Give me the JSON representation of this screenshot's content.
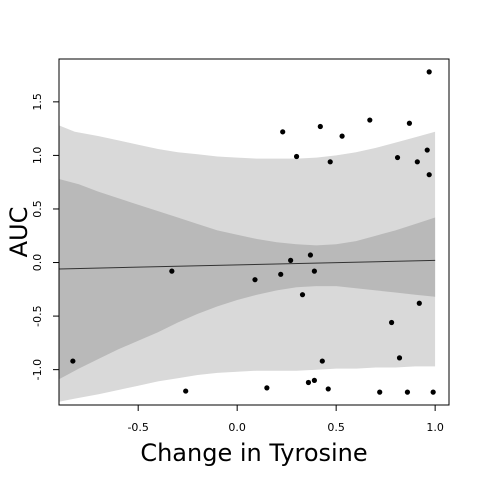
{
  "chart_data": {
    "type": "scatter",
    "title": "",
    "xlabel": "Change in Tyrosine",
    "ylabel": "AUC",
    "xlim": [
      -0.9,
      1.07
    ],
    "ylim": [
      -1.33,
      1.9
    ],
    "x_ticks": [
      -0.5,
      0.0,
      0.5,
      1.0
    ],
    "x_tick_labels": [
      "-0.5",
      "0.0",
      "0.5",
      "1.0"
    ],
    "y_ticks": [
      -1.0,
      -0.5,
      0.0,
      0.5,
      1.0,
      1.5
    ],
    "y_tick_labels": [
      "-1.0",
      "-0.5",
      "0.0",
      "0.5",
      "1.0",
      "1.5"
    ],
    "grid": false,
    "colors": {
      "points": "#000000",
      "outer_band": "#d9d9d9",
      "inner_band": "#b9b9b9",
      "fit_line": "#333333"
    },
    "fit_line": {
      "x": [
        -0.9,
        1.0
      ],
      "y": [
        -0.06,
        0.02
      ]
    },
    "outer_band": {
      "x": [
        -0.9,
        -0.82,
        -0.7,
        -0.6,
        -0.5,
        -0.4,
        -0.3,
        -0.2,
        -0.1,
        0.0,
        0.1,
        0.2,
        0.3,
        0.4,
        0.5,
        0.6,
        0.7,
        0.8,
        0.9,
        1.0
      ],
      "upper": [
        1.28,
        1.22,
        1.18,
        1.14,
        1.1,
        1.06,
        1.03,
        1.01,
        0.99,
        0.98,
        0.97,
        0.97,
        0.97,
        0.98,
        1.0,
        1.03,
        1.07,
        1.12,
        1.17,
        1.22
      ],
      "lower": [
        -1.3,
        -1.27,
        -1.23,
        -1.19,
        -1.15,
        -1.11,
        -1.08,
        -1.05,
        -1.03,
        -1.02,
        -1.01,
        -1.01,
        -1.01,
        -1.0,
        -0.99,
        -0.99,
        -0.98,
        -0.98,
        -0.97,
        -0.97
      ]
    },
    "inner_band": {
      "x": [
        -0.9,
        -0.8,
        -0.7,
        -0.6,
        -0.5,
        -0.4,
        -0.3,
        -0.2,
        -0.1,
        0.0,
        0.1,
        0.2,
        0.3,
        0.4,
        0.5,
        0.6,
        0.7,
        0.8,
        0.9,
        1.0
      ],
      "upper": [
        0.78,
        0.73,
        0.66,
        0.6,
        0.54,
        0.48,
        0.42,
        0.36,
        0.3,
        0.26,
        0.22,
        0.19,
        0.17,
        0.16,
        0.17,
        0.2,
        0.25,
        0.3,
        0.36,
        0.42
      ],
      "lower": [
        -1.09,
        -0.99,
        -0.9,
        -0.81,
        -0.73,
        -0.65,
        -0.56,
        -0.48,
        -0.41,
        -0.35,
        -0.3,
        -0.26,
        -0.23,
        -0.22,
        -0.22,
        -0.24,
        -0.26,
        -0.28,
        -0.3,
        -0.32
      ]
    },
    "points": [
      {
        "x": -0.83,
        "y": -0.92
      },
      {
        "x": -0.33,
        "y": -0.08
      },
      {
        "x": -0.26,
        "y": -1.2
      },
      {
        "x": 0.09,
        "y": -0.16
      },
      {
        "x": 0.15,
        "y": -1.17
      },
      {
        "x": 0.22,
        "y": -0.11
      },
      {
        "x": 0.23,
        "y": 1.22
      },
      {
        "x": 0.27,
        "y": 0.02
      },
      {
        "x": 0.3,
        "y": 0.99
      },
      {
        "x": 0.33,
        "y": -0.3
      },
      {
        "x": 0.36,
        "y": -1.12
      },
      {
        "x": 0.37,
        "y": 0.07
      },
      {
        "x": 0.39,
        "y": -0.08
      },
      {
        "x": 0.39,
        "y": -1.1
      },
      {
        "x": 0.42,
        "y": 1.27
      },
      {
        "x": 0.43,
        "y": -0.92
      },
      {
        "x": 0.46,
        "y": -1.18
      },
      {
        "x": 0.47,
        "y": 0.94
      },
      {
        "x": 0.53,
        "y": 1.18
      },
      {
        "x": 0.67,
        "y": 1.33
      },
      {
        "x": 0.72,
        "y": -1.21
      },
      {
        "x": 0.78,
        "y": -0.56
      },
      {
        "x": 0.81,
        "y": 0.98
      },
      {
        "x": 0.82,
        "y": -0.89
      },
      {
        "x": 0.86,
        "y": -1.21
      },
      {
        "x": 0.87,
        "y": 1.3
      },
      {
        "x": 0.91,
        "y": 0.94
      },
      {
        "x": 0.92,
        "y": -0.38
      },
      {
        "x": 0.96,
        "y": 1.05
      },
      {
        "x": 0.97,
        "y": 0.82
      },
      {
        "x": 0.97,
        "y": 1.78
      },
      {
        "x": 0.99,
        "y": -1.21
      }
    ]
  }
}
